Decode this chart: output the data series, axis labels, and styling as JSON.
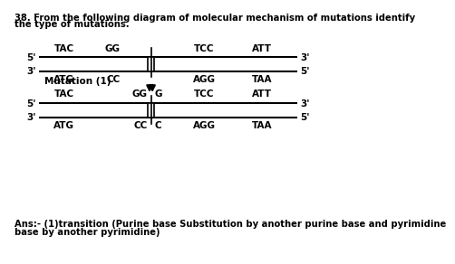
{
  "bg_color": "#ffffff",
  "text_color": "#000000",
  "title_line1": "38. From the following diagram of molecular mechanism of mutations identify",
  "title_line2": "the type of mutations.",
  "ans_line1": "Ans:- (1)transition (Purine base Substitution by another purine base and pyrimidine",
  "ans_line2": "base by another pyrimidine)",
  "top_seq_top": [
    "TAC",
    "GG",
    "TCC",
    "ATT"
  ],
  "top_seq_bot": [
    "ATG",
    "CC",
    "AGG",
    "TAA"
  ],
  "bot_seq_top": [
    "TAC",
    "GG",
    "G",
    "TCC",
    "ATT"
  ],
  "bot_seq_bot": [
    "ATG",
    "CC",
    "C",
    "AGG",
    "TAA"
  ],
  "mutation_label": "Mutation (1)"
}
